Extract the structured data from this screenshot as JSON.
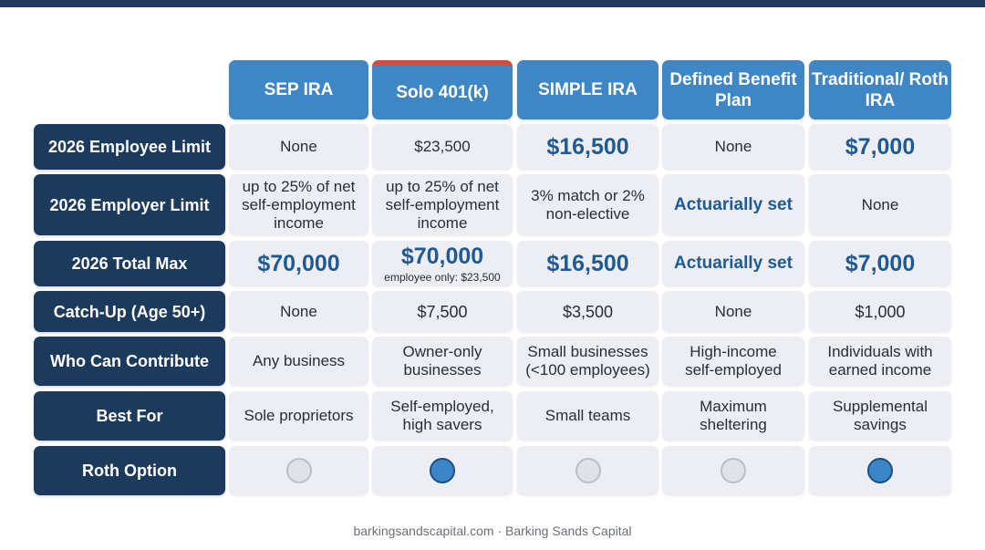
{
  "columns": [
    "SEP IRA",
    "Solo 401(k)",
    "SIMPLE IRA",
    "Defined Benefit Plan",
    "Traditional/ Roth IRA"
  ],
  "rows": [
    {
      "label": "2026 Employee Limit",
      "cells": [
        "None",
        "$23,500",
        "$16,500",
        "None",
        "$7,000"
      ]
    },
    {
      "label": "2026 Employer Limit",
      "cells": [
        "up to 25% of net self-employment income",
        "up to 25% of net self-employment income",
        "3% match or 2% non-elective",
        "Actuarially set",
        "None"
      ]
    },
    {
      "label": "2026 Total Max",
      "cells": [
        "$70,000",
        "$70,000",
        "$16,500",
        "Actuarially set",
        "$7,000"
      ],
      "solo_note": "employee only: $23,500"
    },
    {
      "label": "Catch-Up (Age 50+)",
      "cells": [
        "None",
        "$7,500",
        "$3,500",
        "None",
        "$1,000"
      ]
    },
    {
      "label": "Who Can Contribute",
      "cells": [
        "Any business",
        "Owner-only businesses",
        "Small businesses (<100 employees)",
        "High-income self-employed",
        "Individuals with earned income"
      ]
    },
    {
      "label": "Best For",
      "cells": [
        "Sole proprietors",
        "Self-employed, high savers",
        "Small teams",
        "Maximum sheltering",
        "Supplemental savings"
      ]
    },
    {
      "label": "Roth Option",
      "roth": [
        false,
        true,
        false,
        false,
        true
      ]
    }
  ],
  "colors": {
    "header_blue": "#3f86c5",
    "row_navy": "#1c3a5b",
    "highlight_red": "#d44a3f",
    "value_blue": "#1f5a93"
  },
  "footer": "barkingsandscapital.com · Barking Sands Capital"
}
